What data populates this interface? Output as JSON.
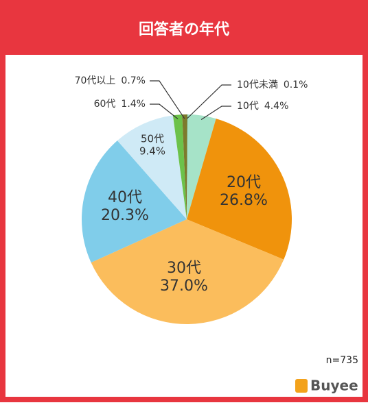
{
  "chart_data": {
    "type": "pie",
    "title": "回答者の年代",
    "categories": [
      "10代未満",
      "10代",
      "20代",
      "30代",
      "40代",
      "50代",
      "60代",
      "70代以上"
    ],
    "values": [
      0.1,
      4.4,
      26.8,
      37.0,
      20.3,
      9.4,
      1.4,
      0.7
    ],
    "value_labels": [
      "0.1%",
      "4.4%",
      "26.8%",
      "37.0%",
      "20.3%",
      "9.4%",
      "1.4%",
      "0.7%"
    ],
    "colors": [
      "#5d6b1e",
      "#a6e3c8",
      "#f0930c",
      "#fbbd5c",
      "#80cdea",
      "#cfeaf6",
      "#6cc24a",
      "#7d7a2c"
    ],
    "note": "n=735"
  },
  "brand": "Buyee"
}
